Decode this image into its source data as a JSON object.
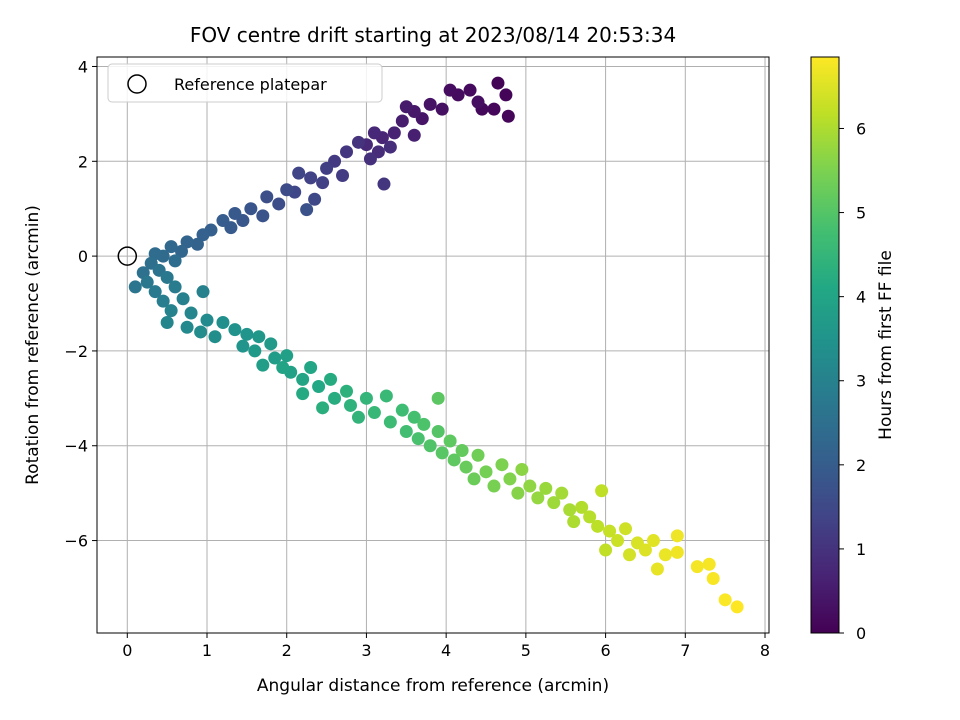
{
  "chart_data": {
    "type": "scatter",
    "title": "FOV centre drift starting at 2023/08/14 20:53:34",
    "xlabel": "Angular distance from reference (arcmin)",
    "ylabel": "Rotation from reference (arcmin)",
    "xlim": [
      -0.38,
      8.05
    ],
    "ylim": [
      -7.95,
      4.2
    ],
    "xticks": [
      0,
      1,
      2,
      3,
      4,
      5,
      6,
      7,
      8
    ],
    "yticks": [
      -6,
      -4,
      -2,
      0,
      2,
      4
    ],
    "grid": true,
    "colormap": "viridis",
    "colorbar": {
      "label": "Hours from first FF file",
      "range": [
        0,
        6.85
      ],
      "ticks": [
        0,
        1,
        2,
        3,
        4,
        5,
        6
      ]
    },
    "legend": {
      "position": "top-left",
      "entries": [
        {
          "label": "Reference platepar",
          "marker": "open-circle"
        }
      ]
    },
    "reference_point": {
      "x": 0,
      "y": 0
    },
    "points": [
      {
        "x": 4.65,
        "y": 3.65,
        "t": 0.05
      },
      {
        "x": 4.75,
        "y": 3.4,
        "t": 0.08
      },
      {
        "x": 4.78,
        "y": 2.95,
        "t": 0.1
      },
      {
        "x": 4.6,
        "y": 3.1,
        "t": 0.12
      },
      {
        "x": 4.45,
        "y": 3.1,
        "t": 0.15
      },
      {
        "x": 4.3,
        "y": 3.5,
        "t": 0.18
      },
      {
        "x": 4.15,
        "y": 3.4,
        "t": 0.2
      },
      {
        "x": 4.05,
        "y": 3.5,
        "t": 0.22
      },
      {
        "x": 4.4,
        "y": 3.25,
        "t": 0.25
      },
      {
        "x": 3.95,
        "y": 3.1,
        "t": 0.3
      },
      {
        "x": 3.8,
        "y": 3.2,
        "t": 0.35
      },
      {
        "x": 3.7,
        "y": 2.9,
        "t": 0.4
      },
      {
        "x": 3.6,
        "y": 3.05,
        "t": 0.45
      },
      {
        "x": 3.5,
        "y": 3.15,
        "t": 0.5
      },
      {
        "x": 3.45,
        "y": 2.85,
        "t": 0.55
      },
      {
        "x": 3.6,
        "y": 2.55,
        "t": 0.6
      },
      {
        "x": 3.35,
        "y": 2.6,
        "t": 0.65
      },
      {
        "x": 3.2,
        "y": 2.5,
        "t": 0.7
      },
      {
        "x": 3.1,
        "y": 2.6,
        "t": 0.75
      },
      {
        "x": 3.0,
        "y": 2.35,
        "t": 0.8
      },
      {
        "x": 3.15,
        "y": 2.2,
        "t": 0.85
      },
      {
        "x": 3.3,
        "y": 2.3,
        "t": 0.9
      },
      {
        "x": 3.05,
        "y": 2.05,
        "t": 0.95
      },
      {
        "x": 2.9,
        "y": 2.4,
        "t": 1.0
      },
      {
        "x": 3.22,
        "y": 1.52,
        "t": 1.05
      },
      {
        "x": 2.75,
        "y": 2.2,
        "t": 1.1
      },
      {
        "x": 2.6,
        "y": 2.0,
        "t": 1.15
      },
      {
        "x": 2.7,
        "y": 1.7,
        "t": 1.2
      },
      {
        "x": 2.5,
        "y": 1.85,
        "t": 1.25
      },
      {
        "x": 2.45,
        "y": 1.55,
        "t": 1.3
      },
      {
        "x": 2.3,
        "y": 1.65,
        "t": 1.35
      },
      {
        "x": 2.15,
        "y": 1.75,
        "t": 1.4
      },
      {
        "x": 2.1,
        "y": 1.35,
        "t": 1.45
      },
      {
        "x": 2.35,
        "y": 1.2,
        "t": 1.5
      },
      {
        "x": 2.0,
        "y": 1.4,
        "t": 1.55
      },
      {
        "x": 1.9,
        "y": 1.1,
        "t": 1.6
      },
      {
        "x": 1.75,
        "y": 1.25,
        "t": 1.65
      },
      {
        "x": 2.25,
        "y": 0.98,
        "t": 1.7
      },
      {
        "x": 1.7,
        "y": 0.85,
        "t": 1.75
      },
      {
        "x": 1.55,
        "y": 1.0,
        "t": 1.8
      },
      {
        "x": 1.45,
        "y": 0.75,
        "t": 1.85
      },
      {
        "x": 1.35,
        "y": 0.9,
        "t": 1.9
      },
      {
        "x": 1.3,
        "y": 0.6,
        "t": 1.95
      },
      {
        "x": 1.2,
        "y": 0.75,
        "t": 2.0
      },
      {
        "x": 1.05,
        "y": 0.55,
        "t": 2.05
      },
      {
        "x": 0.95,
        "y": 0.45,
        "t": 2.1
      },
      {
        "x": 0.88,
        "y": 0.25,
        "t": 2.15
      },
      {
        "x": 0.75,
        "y": 0.3,
        "t": 2.2
      },
      {
        "x": 0.68,
        "y": 0.1,
        "t": 2.25
      },
      {
        "x": 0.55,
        "y": 0.2,
        "t": 2.3
      },
      {
        "x": 0.45,
        "y": 0.0,
        "t": 2.35
      },
      {
        "x": 0.35,
        "y": 0.05,
        "t": 2.4
      },
      {
        "x": 0.6,
        "y": -0.1,
        "t": 2.45
      },
      {
        "x": 0.3,
        "y": -0.15,
        "t": 2.5
      },
      {
        "x": 0.2,
        "y": -0.35,
        "t": 2.55
      },
      {
        "x": 0.4,
        "y": -0.3,
        "t": 2.6
      },
      {
        "x": 0.1,
        "y": -0.65,
        "t": 2.65
      },
      {
        "x": 0.25,
        "y": -0.55,
        "t": 2.7
      },
      {
        "x": 0.5,
        "y": -0.45,
        "t": 2.75
      },
      {
        "x": 0.35,
        "y": -0.75,
        "t": 2.8
      },
      {
        "x": 0.6,
        "y": -0.65,
        "t": 2.85
      },
      {
        "x": 0.45,
        "y": -0.95,
        "t": 2.9
      },
      {
        "x": 0.7,
        "y": -0.9,
        "t": 2.95
      },
      {
        "x": 0.95,
        "y": -0.75,
        "t": 3.0
      },
      {
        "x": 0.55,
        "y": -1.15,
        "t": 3.05
      },
      {
        "x": 0.5,
        "y": -1.4,
        "t": 3.1
      },
      {
        "x": 0.8,
        "y": -1.2,
        "t": 3.15
      },
      {
        "x": 0.75,
        "y": -1.5,
        "t": 3.2
      },
      {
        "x": 1.0,
        "y": -1.35,
        "t": 3.25
      },
      {
        "x": 0.92,
        "y": -1.6,
        "t": 3.3
      },
      {
        "x": 1.1,
        "y": -1.7,
        "t": 3.35
      },
      {
        "x": 1.2,
        "y": -1.4,
        "t": 3.4
      },
      {
        "x": 1.35,
        "y": -1.55,
        "t": 3.45
      },
      {
        "x": 1.5,
        "y": -1.65,
        "t": 3.5
      },
      {
        "x": 1.45,
        "y": -1.9,
        "t": 3.55
      },
      {
        "x": 1.65,
        "y": -1.7,
        "t": 3.6
      },
      {
        "x": 1.6,
        "y": -2.0,
        "t": 3.65
      },
      {
        "x": 1.8,
        "y": -1.85,
        "t": 3.7
      },
      {
        "x": 1.85,
        "y": -2.15,
        "t": 3.75
      },
      {
        "x": 1.7,
        "y": -2.3,
        "t": 3.8
      },
      {
        "x": 2.0,
        "y": -2.1,
        "t": 3.85
      },
      {
        "x": 2.05,
        "y": -2.45,
        "t": 3.9
      },
      {
        "x": 1.95,
        "y": -2.35,
        "t": 3.95
      },
      {
        "x": 2.2,
        "y": -2.6,
        "t": 4.0
      },
      {
        "x": 2.3,
        "y": -2.35,
        "t": 4.05
      },
      {
        "x": 2.4,
        "y": -2.75,
        "t": 4.1
      },
      {
        "x": 2.2,
        "y": -2.9,
        "t": 4.15
      },
      {
        "x": 2.55,
        "y": -2.6,
        "t": 4.2
      },
      {
        "x": 2.6,
        "y": -3.0,
        "t": 4.25
      },
      {
        "x": 2.45,
        "y": -3.2,
        "t": 4.3
      },
      {
        "x": 2.75,
        "y": -2.85,
        "t": 4.35
      },
      {
        "x": 2.8,
        "y": -3.15,
        "t": 4.4
      },
      {
        "x": 2.9,
        "y": -3.4,
        "t": 4.45
      },
      {
        "x": 3.0,
        "y": -3.0,
        "t": 4.5
      },
      {
        "x": 3.1,
        "y": -3.3,
        "t": 4.55
      },
      {
        "x": 3.25,
        "y": -2.95,
        "t": 4.6
      },
      {
        "x": 3.3,
        "y": -3.5,
        "t": 4.65
      },
      {
        "x": 3.45,
        "y": -3.25,
        "t": 4.7
      },
      {
        "x": 3.5,
        "y": -3.7,
        "t": 4.75
      },
      {
        "x": 3.6,
        "y": -3.4,
        "t": 4.8
      },
      {
        "x": 3.65,
        "y": -3.85,
        "t": 4.85
      },
      {
        "x": 3.72,
        "y": -3.55,
        "t": 4.9
      },
      {
        "x": 3.8,
        "y": -4.0,
        "t": 4.95
      },
      {
        "x": 3.9,
        "y": -3.7,
        "t": 5.0
      },
      {
        "x": 3.95,
        "y": -4.15,
        "t": 5.05
      },
      {
        "x": 3.9,
        "y": -3.0,
        "t": 5.1
      },
      {
        "x": 4.05,
        "y": -3.9,
        "t": 5.12
      },
      {
        "x": 4.1,
        "y": -4.3,
        "t": 5.15
      },
      {
        "x": 4.2,
        "y": -4.1,
        "t": 5.2
      },
      {
        "x": 4.25,
        "y": -4.45,
        "t": 5.25
      },
      {
        "x": 4.35,
        "y": -4.7,
        "t": 5.3
      },
      {
        "x": 4.4,
        "y": -4.2,
        "t": 5.35
      },
      {
        "x": 4.5,
        "y": -4.55,
        "t": 5.4
      },
      {
        "x": 4.6,
        "y": -4.85,
        "t": 5.45
      },
      {
        "x": 4.7,
        "y": -4.4,
        "t": 5.5
      },
      {
        "x": 4.8,
        "y": -4.7,
        "t": 5.55
      },
      {
        "x": 4.9,
        "y": -5.0,
        "t": 5.6
      },
      {
        "x": 4.95,
        "y": -4.5,
        "t": 5.65
      },
      {
        "x": 5.05,
        "y": -4.85,
        "t": 5.7
      },
      {
        "x": 5.15,
        "y": -5.1,
        "t": 5.75
      },
      {
        "x": 5.25,
        "y": -4.9,
        "t": 5.8
      },
      {
        "x": 5.35,
        "y": -5.2,
        "t": 5.85
      },
      {
        "x": 5.45,
        "y": -5.0,
        "t": 5.9
      },
      {
        "x": 5.55,
        "y": -5.35,
        "t": 5.95
      },
      {
        "x": 5.6,
        "y": -5.6,
        "t": 6.0
      },
      {
        "x": 5.7,
        "y": -5.3,
        "t": 6.05
      },
      {
        "x": 5.8,
        "y": -5.5,
        "t": 6.1
      },
      {
        "x": 5.9,
        "y": -5.7,
        "t": 6.15
      },
      {
        "x": 5.95,
        "y": -4.95,
        "t": 6.18
      },
      {
        "x": 6.0,
        "y": -6.2,
        "t": 6.2
      },
      {
        "x": 6.05,
        "y": -5.8,
        "t": 6.25
      },
      {
        "x": 6.15,
        "y": -6.0,
        "t": 6.3
      },
      {
        "x": 6.25,
        "y": -5.75,
        "t": 6.35
      },
      {
        "x": 6.3,
        "y": -6.3,
        "t": 6.4
      },
      {
        "x": 6.4,
        "y": -6.05,
        "t": 6.45
      },
      {
        "x": 6.5,
        "y": -6.2,
        "t": 6.5
      },
      {
        "x": 6.6,
        "y": -6.0,
        "t": 6.55
      },
      {
        "x": 6.65,
        "y": -6.6,
        "t": 6.6
      },
      {
        "x": 6.75,
        "y": -6.3,
        "t": 6.65
      },
      {
        "x": 6.9,
        "y": -5.9,
        "t": 6.68
      },
      {
        "x": 6.9,
        "y": -6.25,
        "t": 6.7
      },
      {
        "x": 7.15,
        "y": -6.55,
        "t": 6.75
      },
      {
        "x": 7.3,
        "y": -6.5,
        "t": 6.78
      },
      {
        "x": 7.35,
        "y": -6.8,
        "t": 6.8
      },
      {
        "x": 7.5,
        "y": -7.25,
        "t": 6.82
      },
      {
        "x": 7.65,
        "y": -7.4,
        "t": 6.85
      }
    ]
  }
}
